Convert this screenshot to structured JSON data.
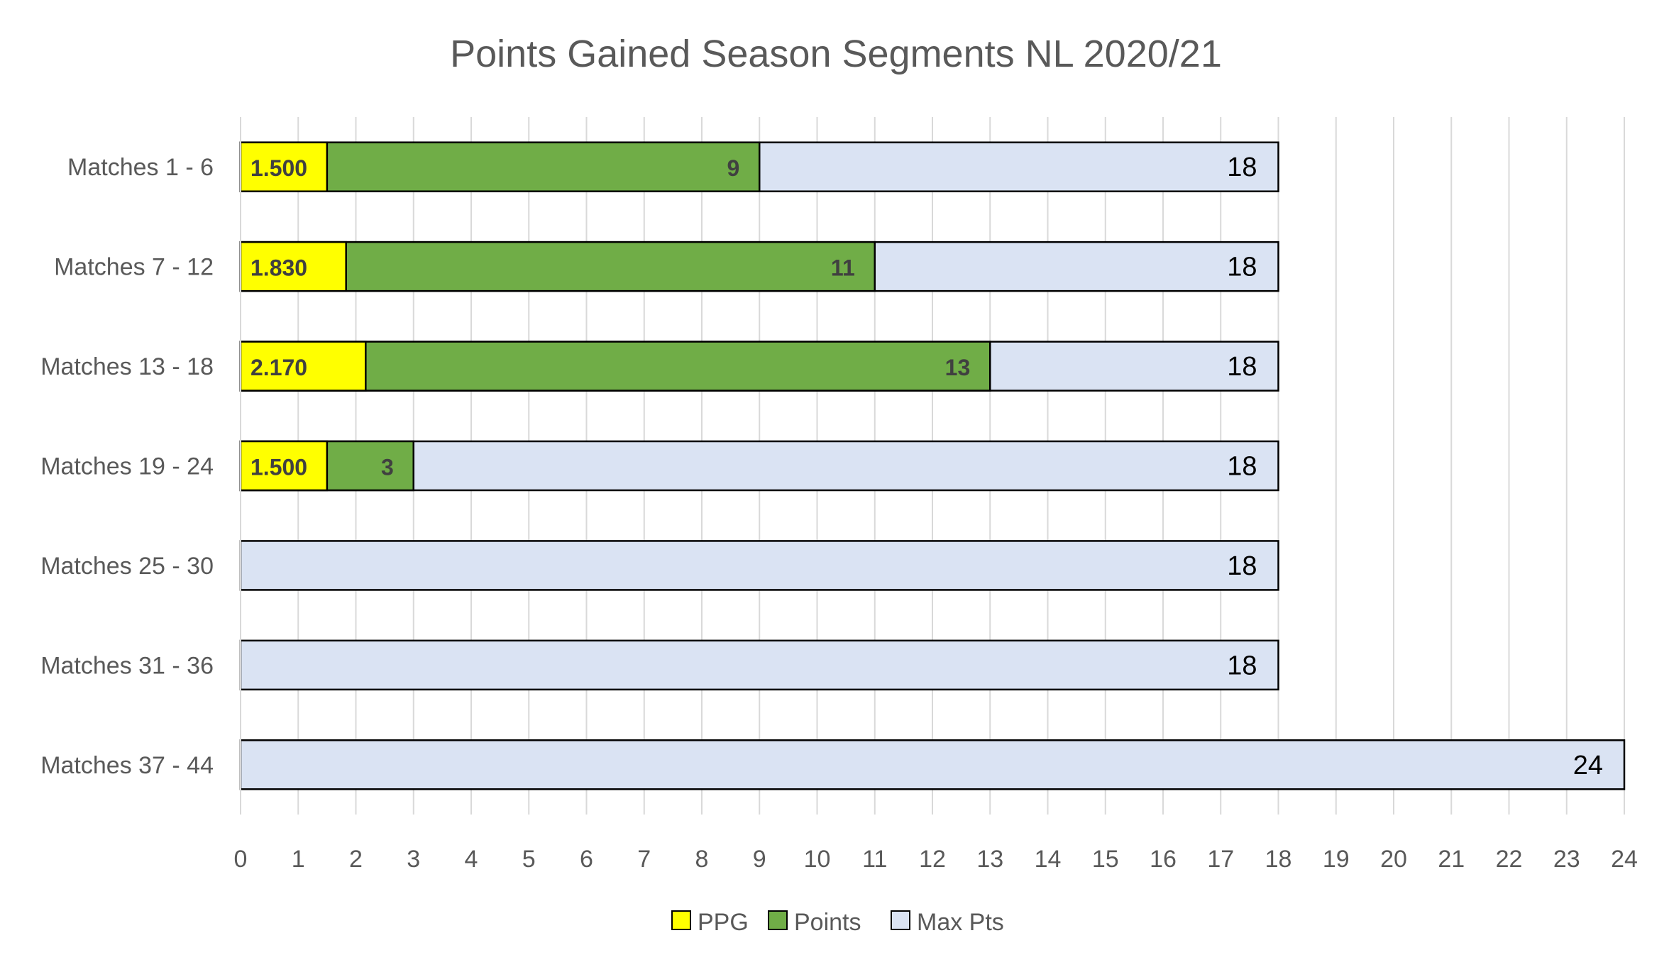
{
  "chart_data": {
    "type": "bar",
    "orientation": "horizontal",
    "stacked": "overlay",
    "title": "Points Gained Season Segments NL 2020/21",
    "xlabel": "",
    "ylabel": "",
    "xlim": [
      0,
      24
    ],
    "x_ticks": [
      "0",
      "1",
      "2",
      "3",
      "4",
      "5",
      "6",
      "7",
      "8",
      "9",
      "10",
      "11",
      "12",
      "13",
      "14",
      "15",
      "16",
      "17",
      "18",
      "19",
      "20",
      "21",
      "22",
      "23",
      "24"
    ],
    "grid": "vertical",
    "legend_position": "bottom",
    "categories": [
      "Matches 1 - 6",
      "Matches 7 - 12",
      "Matches 13 - 18",
      "Matches 19 - 24",
      "Matches 25 - 30",
      "Matches 31 - 36",
      "Matches 37 - 44"
    ],
    "series": [
      {
        "name": "Max Pts",
        "color": "#dae3f3",
        "values": [
          18,
          18,
          18,
          18,
          18,
          18,
          24
        ],
        "labels": [
          "18",
          "18",
          "18",
          "18",
          "18",
          "18",
          "24"
        ]
      },
      {
        "name": "Points",
        "color": "#70ad47",
        "values": [
          9,
          11,
          13,
          3,
          null,
          null,
          null
        ],
        "labels": [
          "9",
          "11",
          "13",
          "3",
          "",
          "",
          ""
        ]
      },
      {
        "name": "PPG",
        "color": "#ffff00",
        "values": [
          1.5,
          1.83,
          2.17,
          1.5,
          null,
          null,
          null
        ],
        "labels": [
          "1.500",
          "1.830",
          "2.170",
          "1.500",
          "",
          "",
          ""
        ]
      }
    ],
    "legend": [
      {
        "name": "PPG",
        "color": "#ffff00"
      },
      {
        "name": "Points",
        "color": "#70ad47"
      },
      {
        "name": "Max Pts",
        "color": "#dae3f3"
      }
    ]
  }
}
